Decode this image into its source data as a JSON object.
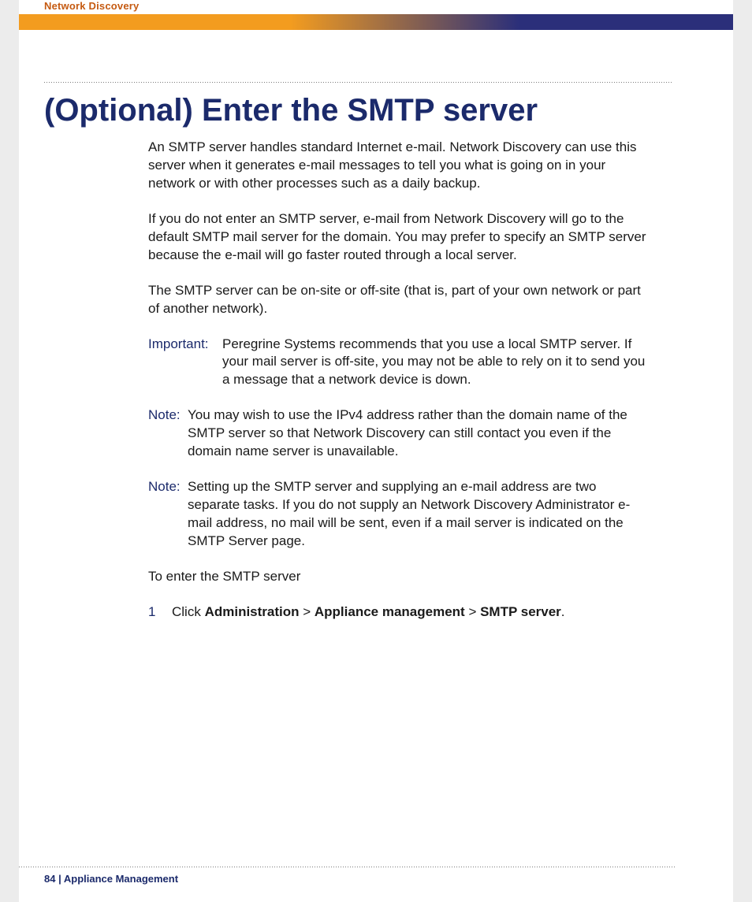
{
  "colors": {
    "accent_navy": "#1b2a6b",
    "accent_orange_text": "#c55a11",
    "band_orange": "#f39c1f",
    "band_navy": "#2b2f7a",
    "page_bg": "#ffffff",
    "outer_bg": "#ececec",
    "body_text": "#1a1a1a",
    "rule_gray": "#7a7a7a"
  },
  "typography": {
    "title_fontsize": 40,
    "title_weight": 700,
    "body_fontsize": 17,
    "body_lineheight": 1.35,
    "header_label_fontsize": 13,
    "footer_fontsize": 13
  },
  "header": {
    "running_head": "Network Discovery"
  },
  "title": "(Optional) Enter the SMTP server",
  "paragraphs": {
    "p1": "An SMTP server handles standard Internet e-mail. Network Discovery can use this server when it generates e-mail messages to tell you what is going on in your network or with other processes such as a daily backup.",
    "p2": "If you do not enter an SMTP server, e-mail from Network Discovery will go to the default SMTP mail server for the domain. You may prefer to specify an SMTP server because the e-mail will go faster routed through a local server.",
    "p3": "The SMTP server can be on-site or off-site (that is, part of your own network or part of another network)."
  },
  "important": {
    "label": "Important:",
    "text": "Peregrine Systems recommends that you use a local SMTP server. If your mail server is off-site, you may not be able to rely on it to send you a message that a network device is down."
  },
  "note1": {
    "label": "Note:",
    "text": "You may wish to use the IPv4 address rather than the domain name of the SMTP server so that Network Discovery can still contact you even if the domain name server is unavailable."
  },
  "note2": {
    "label": "Note:",
    "text": "Setting up the SMTP server and supplying an e-mail address are two separate tasks. If you do not supply an Network Discovery Administrator e-mail address, no mail will be sent, even if a mail server is indicated on the SMTP Server page."
  },
  "lead": "To enter the SMTP server",
  "step1": {
    "num": "1",
    "prefix": "Click ",
    "b1": "Administration",
    "sep1": " > ",
    "b2": "Appliance management",
    "sep2": " > ",
    "b3": "SMTP server",
    "suffix": "."
  },
  "footer": {
    "page_num": "84",
    "sep": " | ",
    "section": "Appliance Management"
  }
}
